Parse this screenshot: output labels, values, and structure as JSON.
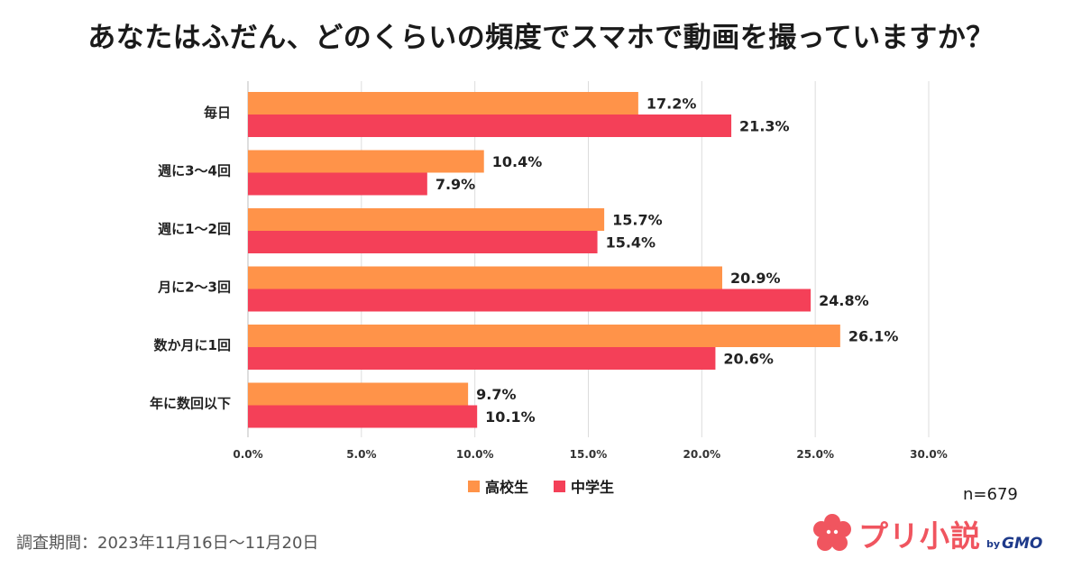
{
  "title": "あなたはふだん、どのくらいの頻度でスマホで動画を撮っていますか？",
  "sample_size": "n=679",
  "survey_period": "調査期間：2023年11月16日〜11月20日",
  "logo": {
    "text": "プリ小説",
    "by": "by",
    "brand": "GMO"
  },
  "colors": {
    "high_school": "#ff9349",
    "junior_high": "#f44058",
    "grid": "#dcdcdc"
  },
  "chart_data": {
    "type": "bar",
    "orientation": "horizontal",
    "categories": [
      "毎日",
      "週に3〜4回",
      "週に1〜2回",
      "月に2〜3回",
      "数か月に1回",
      "年に数回以下"
    ],
    "series": [
      {
        "name": "高校生",
        "values": [
          17.2,
          10.4,
          15.7,
          20.9,
          26.1,
          9.7
        ]
      },
      {
        "name": "中学生",
        "values": [
          21.3,
          7.9,
          15.4,
          24.8,
          20.6,
          10.1
        ]
      }
    ],
    "xlim": [
      0,
      30
    ],
    "xticks": [
      "0.0%",
      "5.0%",
      "10.0%",
      "15.0%",
      "20.0%",
      "25.0%",
      "30.0%"
    ],
    "value_suffix": "%",
    "grid": true,
    "legend_position": "bottom"
  }
}
